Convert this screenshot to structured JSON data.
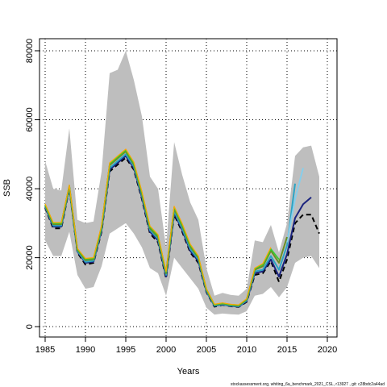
{
  "chart_data": {
    "type": "line",
    "title": "",
    "xlabel": "Years",
    "ylabel": "SSB",
    "xlim": [
      1984.3,
      2021.2
    ],
    "ylim": [
      -3000,
      83500
    ],
    "xticks": [
      1985,
      1990,
      1995,
      2000,
      2005,
      2010,
      2015,
      2020
    ],
    "yticks": [
      0,
      20000,
      40000,
      60000,
      80000
    ],
    "grid": true,
    "footer": "stockassessment.org, whiting_6a_benchmark_2021_CSL, r13927 , git: c28bdc2a44ad",
    "band": {
      "color": "#bebebe",
      "x": [
        1985,
        1986,
        1987,
        1988,
        1989,
        1990,
        1991,
        1992,
        1993,
        1994,
        1995,
        1996,
        1997,
        1998,
        1999,
        2000,
        2001,
        2002,
        2003,
        2004,
        2005,
        2006,
        2007,
        2008,
        2009,
        2010,
        2011,
        2012,
        2013,
        2014,
        2015,
        2016,
        2017,
        2018,
        2019
      ],
      "upper": [
        48000,
        40000,
        39500,
        57500,
        31000,
        30000,
        30500,
        45000,
        73500,
        74500,
        80000,
        71500,
        61000,
        43500,
        40000,
        23000,
        53500,
        44000,
        36000,
        31000,
        17000,
        9000,
        9800,
        9200,
        9000,
        11000,
        25000,
        24500,
        29500,
        21500,
        30000,
        49500,
        52000,
        52500,
        43500
      ],
      "lower": [
        25000,
        20500,
        20500,
        27500,
        15000,
        11000,
        11500,
        17500,
        27000,
        28500,
        30000,
        27000,
        23000,
        17000,
        15500,
        9000,
        20000,
        17000,
        14000,
        11000,
        5500,
        3500,
        3800,
        3600,
        3500,
        4500,
        9000,
        9500,
        11500,
        8500,
        11500,
        18500,
        20000,
        20500,
        17000
      ]
    },
    "series": [
      {
        "color": "#000000",
        "dash": "6,4",
        "width": 2,
        "x": [
          1985,
          1986,
          1987,
          1988,
          1989,
          1990,
          1991,
          1992,
          1993,
          1994,
          1995,
          1996,
          1997,
          1998,
          1999,
          2000,
          2001,
          2002,
          2003,
          2004,
          2005,
          2006,
          2007,
          2008,
          2009,
          2010,
          2011,
          2012,
          2013,
          2014,
          2015,
          2016,
          2017,
          2018,
          2019
        ],
        "values": [
          34500,
          28500,
          28500,
          40000,
          21500,
          18000,
          18500,
          27500,
          45000,
          47000,
          49000,
          45500,
          37000,
          27000,
          24500,
          14000,
          32500,
          27500,
          21500,
          18500,
          10000,
          5800,
          6300,
          5900,
          5700,
          7200,
          15000,
          15500,
          19000,
          13000,
          19500,
          30000,
          32500,
          32500,
          27000
        ]
      },
      {
        "color": "#1a237e",
        "dash": "",
        "width": 2,
        "x": [
          1985,
          1986,
          1987,
          1988,
          1989,
          1990,
          1991,
          1992,
          1993,
          1994,
          1995,
          1996,
          1997,
          1998,
          1999,
          2000,
          2001,
          2002,
          2003,
          2004,
          2005,
          2006,
          2007,
          2008,
          2009,
          2010,
          2011,
          2012,
          2013,
          2014,
          2015,
          2016,
          2017,
          2018
        ],
        "values": [
          34700,
          29000,
          29000,
          40200,
          21800,
          18500,
          18800,
          28000,
          45500,
          47500,
          49500,
          46000,
          37500,
          27500,
          25000,
          14500,
          33000,
          28000,
          22000,
          19000,
          10200,
          6000,
          6400,
          6000,
          5800,
          7400,
          15500,
          16000,
          19500,
          14500,
          21000,
          31500,
          35500,
          37500
        ]
      },
      {
        "color": "#2ca4c4",
        "dash": "",
        "width": 2,
        "x": [
          1985,
          1986,
          1987,
          1988,
          1989,
          1990,
          1991,
          1992,
          1993,
          1994,
          1995,
          1996,
          1997,
          1998,
          1999,
          2000,
          2001,
          2002,
          2003,
          2004,
          2005,
          2006,
          2007,
          2008,
          2009,
          2010,
          2011,
          2012,
          2013,
          2014,
          2015,
          2016
        ],
        "values": [
          34900,
          29300,
          29300,
          40400,
          22000,
          18800,
          19100,
          28300,
          46000,
          48000,
          50000,
          46500,
          38000,
          28000,
          25500,
          15000,
          33500,
          28500,
          22500,
          19500,
          10400,
          6100,
          6500,
          6100,
          5900,
          7600,
          16000,
          16500,
          20500,
          16500,
          23500,
          41500
        ]
      },
      {
        "color": "#87ceeb",
        "dash": "",
        "width": 2,
        "x": [
          2015,
          2016,
          2017
        ],
        "values": [
          24500,
          37000,
          46000
        ]
      },
      {
        "color": "#6b8e23",
        "dash": "",
        "width": 2,
        "x": [
          1985,
          1986,
          1987,
          1988,
          1989,
          1990,
          1991,
          1992,
          1993,
          1994,
          1995,
          1996,
          1997,
          1998,
          1999,
          2000,
          2001,
          2002,
          2003,
          2004,
          2005,
          2006,
          2007,
          2008,
          2009,
          2010,
          2011,
          2012,
          2013,
          2014,
          2015
        ],
        "values": [
          35200,
          29700,
          29700,
          40700,
          22300,
          19300,
          19500,
          28800,
          46800,
          48800,
          50800,
          47000,
          38500,
          28500,
          26000,
          15500,
          34200,
          29200,
          23200,
          20000,
          10700,
          6300,
          6700,
          6300,
          6100,
          7900,
          16500,
          17500,
          22000,
          18500,
          26000
        ]
      },
      {
        "color": "#32cd32",
        "dash": "",
        "width": 1.6,
        "x": [
          1985,
          1986,
          1987,
          1988,
          1989,
          1990,
          1991,
          1992,
          1993,
          1994,
          1995,
          1996,
          1997,
          1998,
          1999,
          2000,
          2001,
          2002,
          2003,
          2004,
          2005,
          2006,
          2007,
          2008,
          2009,
          2010,
          2011,
          2012,
          2013,
          2014
        ],
        "values": [
          35400,
          30000,
          30000,
          40900,
          22500,
          19600,
          19800,
          29100,
          47200,
          49200,
          51200,
          47400,
          38900,
          28900,
          26400,
          15800,
          34600,
          29600,
          23600,
          20300,
          10900,
          6400,
          6800,
          6400,
          6200,
          8000,
          16800,
          18000,
          22500,
          19500
        ]
      },
      {
        "color": "#ffa500",
        "dash": "",
        "width": 1.2,
        "x": [
          1985,
          1986,
          1987,
          1988,
          1989,
          1990,
          1991,
          1992,
          1993,
          1994,
          1995,
          1996,
          1997,
          1998,
          1999,
          2000,
          2001,
          2002,
          2003,
          2004,
          2005,
          2006,
          2007,
          2008,
          2009,
          2010,
          2011,
          2012,
          2013
        ],
        "values": [
          35600,
          30200,
          30200,
          41100,
          22700,
          19800,
          20000,
          29400,
          47500,
          49500,
          51500,
          47700,
          39200,
          29200,
          26700,
          16000,
          34900,
          29900,
          23900,
          20500,
          11000,
          6500,
          6900,
          6500,
          6300,
          8100,
          17000,
          18300,
          23000
        ]
      }
    ]
  }
}
